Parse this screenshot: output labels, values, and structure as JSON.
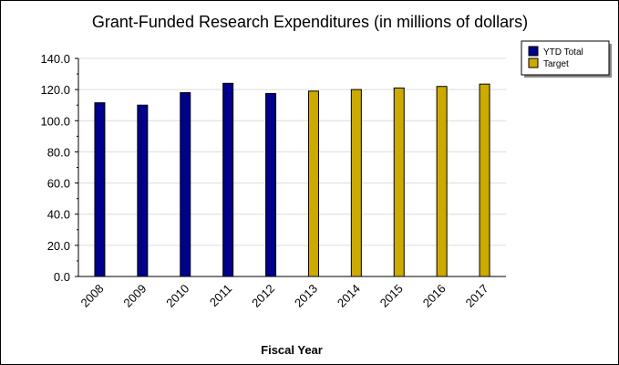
{
  "chart_data": {
    "type": "bar",
    "title": "Grant-Funded Research Expenditures (in millions of dollars)",
    "xlabel": "Fiscal Year",
    "ylabel": "",
    "categories": [
      "2008",
      "2009",
      "2010",
      "2011",
      "2012",
      "2013",
      "2014",
      "2015",
      "2016",
      "2017"
    ],
    "ylim": [
      0,
      140
    ],
    "yticks": [
      "0.0",
      "20.0",
      "40.0",
      "60.0",
      "80.0",
      "100.0",
      "120.0",
      "140.0"
    ],
    "grid": true,
    "legend_position": "top-right",
    "series": [
      {
        "name": "YTD Total",
        "color": "#00008b",
        "values": [
          111.5,
          110.0,
          118.0,
          124.0,
          117.5,
          null,
          null,
          null,
          null,
          null
        ]
      },
      {
        "name": "Target",
        "color": "#ccaa00",
        "values": [
          null,
          null,
          null,
          null,
          null,
          119.0,
          120.0,
          121.0,
          122.0,
          123.5
        ]
      }
    ]
  }
}
